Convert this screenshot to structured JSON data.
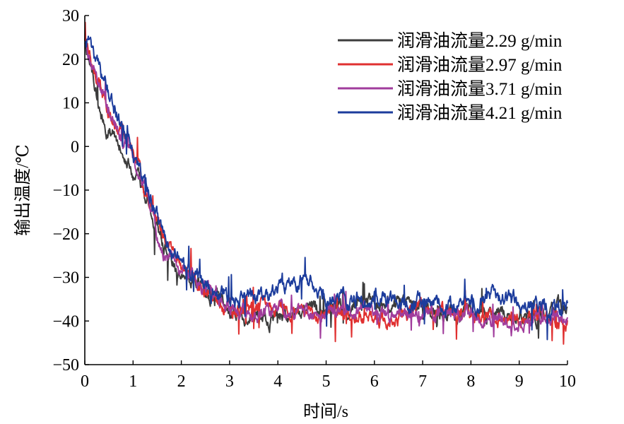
{
  "chart_data": {
    "type": "line",
    "xlabel": "时间/s",
    "ylabel": "输出温度/℃",
    "xlim": [
      0,
      10
    ],
    "ylim": [
      -50,
      30
    ],
    "xticks": [
      "0",
      "1",
      "2",
      "3",
      "4",
      "5",
      "6",
      "7",
      "8",
      "9",
      "10"
    ],
    "yticks": [
      "30",
      "20",
      "10",
      "0",
      "−10",
      "−20",
      "−30",
      "−40",
      "−50"
    ],
    "grid": false,
    "legend_position": "top-right",
    "series": [
      {
        "name": "润滑油流量2.29 g/min",
        "color": "#3c3c3c",
        "noise": 2.2,
        "x": [
          0,
          0.1,
          0.2,
          0.3,
          0.4,
          0.6,
          0.8,
          0.9,
          1.0,
          1.2,
          1.4,
          1.6,
          1.8,
          2.0,
          2.2,
          2.5,
          2.8,
          3.0,
          3.5,
          4.0,
          4.5,
          5.0,
          5.5,
          6.0,
          6.5,
          7.0,
          7.5,
          8.0,
          8.5,
          9.0,
          9.5,
          10.0
        ],
        "y": [
          24,
          20,
          14,
          9,
          5,
          2,
          -2,
          -4,
          -6,
          -10,
          -16,
          -22,
          -26,
          -29,
          -31,
          -33,
          -35,
          -38,
          -39,
          -39,
          -38,
          -37,
          -36,
          -36,
          -35,
          -37,
          -38,
          -38,
          -38,
          -38,
          -38,
          -38
        ]
      },
      {
        "name": "润滑油流量2.97 g/min",
        "color": "#e03030",
        "noise": 2.2,
        "x": [
          0,
          0.1,
          0.2,
          0.4,
          0.6,
          0.8,
          0.9,
          1.0,
          1.1,
          1.2,
          1.4,
          1.6,
          1.8,
          2.0,
          2.3,
          2.6,
          3.0,
          3.5,
          4.0,
          4.5,
          5.0,
          5.5,
          6.0,
          6.5,
          7.0,
          7.5,
          8.0,
          8.5,
          9.0,
          9.5,
          10.0
        ],
        "y": [
          24,
          21,
          17,
          12,
          6,
          3,
          2,
          0,
          -4,
          -9,
          -15,
          -20,
          -25,
          -28,
          -31,
          -33,
          -38,
          -38,
          -37,
          -37,
          -38,
          -39,
          -39,
          -40,
          -37,
          -37,
          -39,
          -40,
          -40,
          -39,
          -40
        ]
      },
      {
        "name": "润滑油流量3.71 g/min",
        "color": "#a03c9c",
        "noise": 2.0,
        "x": [
          0,
          0.1,
          0.2,
          0.4,
          0.6,
          0.8,
          1.0,
          1.2,
          1.4,
          1.5,
          1.6,
          1.8,
          2.0,
          2.3,
          2.6,
          3.0,
          3.5,
          4.0,
          4.5,
          5.0,
          5.5,
          6.0,
          6.5,
          7.0,
          7.5,
          8.0,
          8.5,
          9.0,
          9.5,
          10.0
        ],
        "y": [
          24,
          21,
          17,
          12,
          7,
          1,
          -3,
          -8,
          -14,
          -20,
          -24,
          -26,
          -28,
          -31,
          -33,
          -37,
          -38,
          -38,
          -38,
          -38,
          -38,
          -38,
          -38,
          -38,
          -38,
          -39,
          -40,
          -40,
          -40,
          -40
        ]
      },
      {
        "name": "润滑油流量4.21 g/min",
        "color": "#1c3c9c",
        "noise": 2.3,
        "x": [
          0,
          0.1,
          0.2,
          0.4,
          0.6,
          0.8,
          1.0,
          1.2,
          1.4,
          1.6,
          1.8,
          2.0,
          2.3,
          2.6,
          3.0,
          3.5,
          4.0,
          4.5,
          5.0,
          5.5,
          6.0,
          6.5,
          7.0,
          7.5,
          8.0,
          8.5,
          9.0,
          9.5,
          10.0
        ],
        "y": [
          25,
          23,
          20,
          15,
          9,
          4,
          -2,
          -8,
          -13,
          -19,
          -24,
          -27,
          -31,
          -33,
          -34,
          -35,
          -33,
          -30,
          -34,
          -35,
          -35,
          -36,
          -36,
          -36,
          -36,
          -34,
          -36,
          -37,
          -37
        ]
      }
    ]
  }
}
